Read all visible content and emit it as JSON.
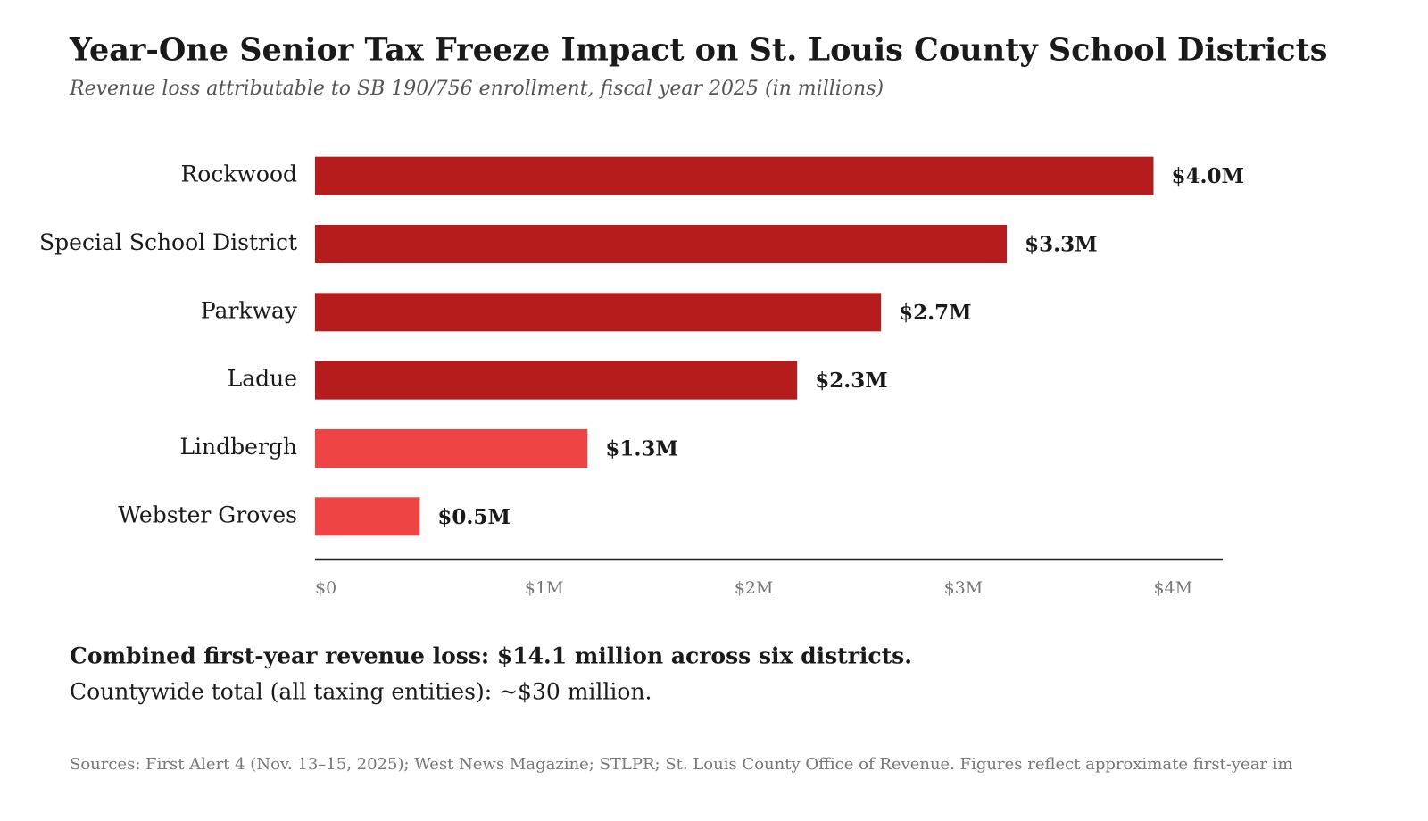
{
  "chart_data": {
    "type": "bar",
    "orientation": "horizontal",
    "title": "Year-One Senior Tax Freeze Impact on St. Louis County School Districts",
    "subtitle": "Revenue loss attributable to SB 190/756 enrollment, fiscal year 2025 (in millions)",
    "categories": [
      "Rockwood",
      "Special School District",
      "Parkway",
      "Ladue",
      "Lindbergh",
      "Webster Groves"
    ],
    "values": [
      4.0,
      3.3,
      2.7,
      2.3,
      1.3,
      0.5
    ],
    "value_labels": [
      "$4.0M",
      "$3.3M",
      "$2.7M",
      "$2.3M",
      "$1.3M",
      "$0.5M"
    ],
    "colors": [
      "#b71c1c",
      "#b71c1c",
      "#b71c1c",
      "#b71c1c",
      "#ef4444",
      "#ef4444"
    ],
    "xlim": [
      0,
      4.33
    ],
    "xticks": [
      {
        "value": 0,
        "label": "$0"
      },
      {
        "value": 1,
        "label": "$1M"
      },
      {
        "value": 2,
        "label": "$2M"
      },
      {
        "value": 3,
        "label": "$3M"
      },
      {
        "value": 4,
        "label": "$4M"
      }
    ],
    "grid": false,
    "notes": [
      "Combined first-year revenue loss: $14.1 million across six districts.",
      "Countywide total (all taxing entities): ~$30 million."
    ],
    "source": "Sources: First Alert 4 (Nov. 13–15, 2025); West News Magazine; STLPR; St. Louis County Office of Revenue. Figures reflect approximate first-year im"
  }
}
